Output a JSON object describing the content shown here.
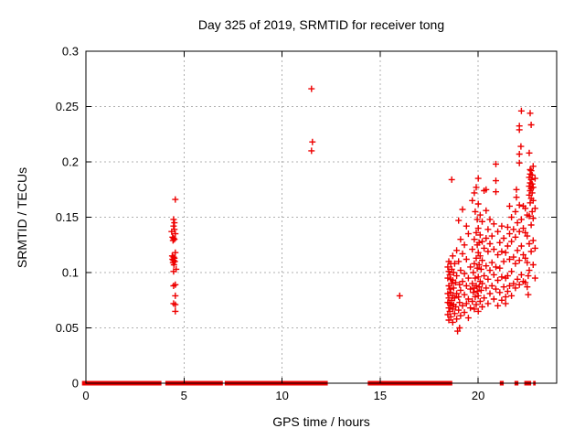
{
  "title": "Day 325 of 2019, SRMTID for receiver tong",
  "chart_data": {
    "type": "scatter",
    "title": "Day 325 of 2019, SRMTID for receiver tong",
    "xlabel": "GPS time / hours",
    "ylabel": "SRMTID / TECUs",
    "xlim": [
      0,
      24
    ],
    "ylim": [
      0,
      0.3
    ],
    "grid": true,
    "legend": "none",
    "marker": "plus",
    "marker_color": "#ee0000",
    "grid_color": "#b0b0b0",
    "axis_color": "#000000",
    "x_ticks": [
      {
        "v": 0,
        "label": "0"
      },
      {
        "v": 5,
        "label": "5"
      },
      {
        "v": 10,
        "label": "10"
      },
      {
        "v": 15,
        "label": "15"
      },
      {
        "v": 20,
        "label": "20"
      }
    ],
    "y_ticks": [
      {
        "v": 0,
        "label": "0"
      },
      {
        "v": 0.05,
        "label": "0.05"
      },
      {
        "v": 0.1,
        "label": "0.1"
      },
      {
        "v": 0.15,
        "label": "0.15"
      },
      {
        "v": 0.2,
        "label": "0.2"
      },
      {
        "v": 0.25,
        "label": "0.25"
      },
      {
        "v": 0.3,
        "label": "0.3"
      }
    ],
    "zero_band_segments": [
      [
        -0.2,
        3.85
      ],
      [
        4.05,
        6.98
      ],
      [
        7.08,
        12.33
      ],
      [
        14.37,
        18.68
      ],
      [
        21.1,
        21.3
      ],
      [
        21.85,
        22.05
      ],
      [
        22.35,
        22.7
      ],
      [
        22.8,
        22.93
      ]
    ],
    "points": [
      [
        4.56,
        0.166
      ],
      [
        4.47,
        0.148
      ],
      [
        4.51,
        0.145
      ],
      [
        4.47,
        0.142
      ],
      [
        4.51,
        0.139
      ],
      [
        4.37,
        0.137
      ],
      [
        4.56,
        0.135
      ],
      [
        4.42,
        0.132
      ],
      [
        4.47,
        0.131
      ],
      [
        4.51,
        0.13
      ],
      [
        4.44,
        0.129
      ],
      [
        4.56,
        0.118
      ],
      [
        4.4,
        0.115
      ],
      [
        4.47,
        0.114
      ],
      [
        4.51,
        0.113
      ],
      [
        4.42,
        0.112
      ],
      [
        4.47,
        0.111
      ],
      [
        4.53,
        0.11
      ],
      [
        4.44,
        0.109
      ],
      [
        4.49,
        0.107
      ],
      [
        4.6,
        0.103
      ],
      [
        4.47,
        0.101
      ],
      [
        4.56,
        0.089
      ],
      [
        4.47,
        0.088
      ],
      [
        4.56,
        0.079
      ],
      [
        4.47,
        0.072
      ],
      [
        4.56,
        0.071
      ],
      [
        4.56,
        0.065
      ],
      [
        11.5,
        0.266
      ],
      [
        11.55,
        0.218
      ],
      [
        11.5,
        0.21
      ],
      [
        16.0,
        0.079
      ],
      [
        18.45,
        0.062
      ],
      [
        18.45,
        0.073
      ],
      [
        18.45,
        0.081
      ],
      [
        18.45,
        0.095
      ],
      [
        18.45,
        0.105
      ],
      [
        18.5,
        0.057
      ],
      [
        18.5,
        0.068
      ],
      [
        18.5,
        0.077
      ],
      [
        18.5,
        0.088
      ],
      [
        18.5,
        0.101
      ],
      [
        18.5,
        0.11
      ],
      [
        18.55,
        0.065
      ],
      [
        18.55,
        0.072
      ],
      [
        18.55,
        0.085
      ],
      [
        18.55,
        0.098
      ],
      [
        18.6,
        0.06
      ],
      [
        18.6,
        0.07
      ],
      [
        18.6,
        0.082
      ],
      [
        18.6,
        0.094
      ],
      [
        18.6,
        0.108
      ],
      [
        18.65,
        0.075
      ],
      [
        18.65,
        0.09
      ],
      [
        18.65,
        0.103
      ],
      [
        18.65,
        0.184
      ],
      [
        18.7,
        0.055
      ],
      [
        18.7,
        0.067
      ],
      [
        18.7,
        0.079
      ],
      [
        18.7,
        0.093
      ],
      [
        18.7,
        0.115
      ],
      [
        18.75,
        0.071
      ],
      [
        18.75,
        0.086
      ],
      [
        18.75,
        0.1
      ],
      [
        18.8,
        0.063
      ],
      [
        18.8,
        0.077
      ],
      [
        18.8,
        0.108
      ],
      [
        18.85,
        0.069
      ],
      [
        18.85,
        0.091
      ],
      [
        18.9,
        0.058
      ],
      [
        18.9,
        0.081
      ],
      [
        18.9,
        0.097
      ],
      [
        18.9,
        0.12
      ],
      [
        18.95,
        0.047
      ],
      [
        19.05,
        0.05
      ],
      [
        19.0,
        0.066
      ],
      [
        19.0,
        0.078
      ],
      [
        19.0,
        0.11
      ],
      [
        19.0,
        0.147
      ],
      [
        19.05,
        0.073
      ],
      [
        19.05,
        0.089
      ],
      [
        19.1,
        0.061
      ],
      [
        19.1,
        0.084
      ],
      [
        19.1,
        0.102
      ],
      [
        19.1,
        0.13
      ],
      [
        19.2,
        0.07
      ],
      [
        19.2,
        0.092
      ],
      [
        19.2,
        0.117
      ],
      [
        19.2,
        0.157
      ],
      [
        19.3,
        0.064
      ],
      [
        19.3,
        0.08
      ],
      [
        19.3,
        0.099
      ],
      [
        19.3,
        0.125
      ],
      [
        19.4,
        0.072
      ],
      [
        19.4,
        0.088
      ],
      [
        19.4,
        0.112
      ],
      [
        19.4,
        0.142
      ],
      [
        19.5,
        0.059
      ],
      [
        19.5,
        0.076
      ],
      [
        19.5,
        0.095
      ],
      [
        19.5,
        0.135
      ],
      [
        19.6,
        0.068
      ],
      [
        19.6,
        0.085
      ],
      [
        19.6,
        0.105
      ],
      [
        19.7,
        0.074
      ],
      [
        19.7,
        0.09
      ],
      [
        19.7,
        0.121
      ],
      [
        19.7,
        0.165
      ],
      [
        19.75,
        0.082
      ],
      [
        19.75,
        0.1
      ],
      [
        19.8,
        0.067
      ],
      [
        19.8,
        0.086
      ],
      [
        19.8,
        0.108
      ],
      [
        19.8,
        0.13
      ],
      [
        19.8,
        0.172
      ],
      [
        19.85,
        0.078
      ],
      [
        19.85,
        0.095
      ],
      [
        19.85,
        0.155
      ],
      [
        19.9,
        0.071
      ],
      [
        19.9,
        0.088
      ],
      [
        19.9,
        0.113
      ],
      [
        19.9,
        0.136
      ],
      [
        19.9,
        0.177
      ],
      [
        19.95,
        0.083
      ],
      [
        19.95,
        0.104
      ],
      [
        19.95,
        0.125
      ],
      [
        19.95,
        0.148
      ],
      [
        20.0,
        0.065
      ],
      [
        20.0,
        0.079
      ],
      [
        20.0,
        0.096
      ],
      [
        20.0,
        0.118
      ],
      [
        20.0,
        0.14
      ],
      [
        20.0,
        0.162
      ],
      [
        20.0,
        0.185
      ],
      [
        20.05,
        0.087
      ],
      [
        20.05,
        0.107
      ],
      [
        20.05,
        0.127
      ],
      [
        20.1,
        0.074
      ],
      [
        20.1,
        0.092
      ],
      [
        20.1,
        0.115
      ],
      [
        20.1,
        0.134
      ],
      [
        20.1,
        0.152
      ],
      [
        20.15,
        0.084
      ],
      [
        20.15,
        0.103
      ],
      [
        20.2,
        0.069
      ],
      [
        20.2,
        0.09
      ],
      [
        20.2,
        0.111
      ],
      [
        20.2,
        0.128
      ],
      [
        20.2,
        0.146
      ],
      [
        20.3,
        0.077
      ],
      [
        20.3,
        0.097
      ],
      [
        20.3,
        0.122
      ],
      [
        20.3,
        0.174
      ],
      [
        20.4,
        0.086
      ],
      [
        20.4,
        0.106
      ],
      [
        20.4,
        0.131
      ],
      [
        20.4,
        0.156
      ],
      [
        20.4,
        0.175
      ],
      [
        20.5,
        0.072
      ],
      [
        20.5,
        0.094
      ],
      [
        20.5,
        0.119
      ],
      [
        20.5,
        0.139
      ],
      [
        20.6,
        0.081
      ],
      [
        20.6,
        0.102
      ],
      [
        20.6,
        0.126
      ],
      [
        20.6,
        0.148
      ],
      [
        20.7,
        0.088
      ],
      [
        20.7,
        0.109
      ],
      [
        20.7,
        0.133
      ],
      [
        20.8,
        0.076
      ],
      [
        20.8,
        0.098
      ],
      [
        20.8,
        0.121
      ],
      [
        20.8,
        0.144
      ],
      [
        20.9,
        0.085
      ],
      [
        20.9,
        0.105
      ],
      [
        20.9,
        0.173
      ],
      [
        20.9,
        0.183
      ],
      [
        20.9,
        0.198
      ],
      [
        21.0,
        0.07
      ],
      [
        21.0,
        0.093
      ],
      [
        21.0,
        0.116
      ],
      [
        21.0,
        0.137
      ],
      [
        21.1,
        0.082
      ],
      [
        21.1,
        0.104
      ],
      [
        21.1,
        0.127
      ],
      [
        21.2,
        0.075
      ],
      [
        21.2,
        0.096
      ],
      [
        21.2,
        0.119
      ],
      [
        21.2,
        0.142
      ],
      [
        21.3,
        0.087
      ],
      [
        21.3,
        0.11
      ],
      [
        21.3,
        0.131
      ],
      [
        21.4,
        0.072
      ],
      [
        21.4,
        0.078
      ],
      [
        21.4,
        0.095
      ],
      [
        21.4,
        0.118
      ],
      [
        21.5,
        0.083
      ],
      [
        21.5,
        0.097
      ],
      [
        21.5,
        0.124
      ],
      [
        21.5,
        0.141
      ],
      [
        21.6,
        0.088
      ],
      [
        21.6,
        0.112
      ],
      [
        21.6,
        0.135
      ],
      [
        21.6,
        0.16
      ],
      [
        21.7,
        0.079
      ],
      [
        21.7,
        0.101
      ],
      [
        21.7,
        0.128
      ],
      [
        21.7,
        0.15
      ],
      [
        21.8,
        0.09
      ],
      [
        21.8,
        0.114
      ],
      [
        21.8,
        0.139
      ],
      [
        21.9,
        0.086
      ],
      [
        21.9,
        0.108
      ],
      [
        21.9,
        0.132
      ],
      [
        21.9,
        0.155
      ],
      [
        21.95,
        0.168
      ],
      [
        21.95,
        0.175
      ],
      [
        22.0,
        0.094
      ],
      [
        22.0,
        0.12
      ],
      [
        22.0,
        0.145
      ],
      [
        22.1,
        0.207
      ],
      [
        22.1,
        0.229
      ],
      [
        22.1,
        0.2325
      ],
      [
        22.1,
        0.089
      ],
      [
        22.1,
        0.111
      ],
      [
        22.1,
        0.137
      ],
      [
        22.1,
        0.161
      ],
      [
        22.1,
        0.199
      ],
      [
        22.18,
        0.214
      ],
      [
        22.2,
        0.098
      ],
      [
        22.2,
        0.124
      ],
      [
        22.2,
        0.148
      ],
      [
        22.2,
        0.246
      ],
      [
        22.3,
        0.092
      ],
      [
        22.3,
        0.116
      ],
      [
        22.3,
        0.14
      ],
      [
        22.3,
        0.16
      ],
      [
        22.4,
        0.091
      ],
      [
        22.4,
        0.113
      ],
      [
        22.4,
        0.136
      ],
      [
        22.4,
        0.158
      ],
      [
        22.5,
        0.087
      ],
      [
        22.5,
        0.109
      ],
      [
        22.5,
        0.133
      ],
      [
        22.5,
        0.152
      ],
      [
        22.55,
        0.08
      ],
      [
        22.55,
        0.097
      ],
      [
        22.6,
        0.102
      ],
      [
        22.6,
        0.126
      ],
      [
        22.6,
        0.151
      ],
      [
        22.6,
        0.17
      ],
      [
        22.6,
        0.178
      ],
      [
        22.6,
        0.186
      ],
      [
        22.6,
        0.208
      ],
      [
        22.65,
        0.163
      ],
      [
        22.65,
        0.174
      ],
      [
        22.65,
        0.181
      ],
      [
        22.65,
        0.189
      ],
      [
        22.65,
        0.193
      ],
      [
        22.65,
        0.244
      ],
      [
        22.7,
        0.119
      ],
      [
        22.7,
        0.143
      ],
      [
        22.7,
        0.167
      ],
      [
        22.7,
        0.176
      ],
      [
        22.7,
        0.184
      ],
      [
        22.7,
        0.192
      ],
      [
        22.7,
        0.2335
      ],
      [
        22.75,
        0.155
      ],
      [
        22.75,
        0.172
      ],
      [
        22.75,
        0.18
      ],
      [
        22.75,
        0.188
      ],
      [
        22.8,
        0.107
      ],
      [
        22.8,
        0.129
      ],
      [
        22.8,
        0.149
      ],
      [
        22.8,
        0.165
      ],
      [
        22.8,
        0.177
      ],
      [
        22.8,
        0.196
      ],
      [
        22.9,
        0.095
      ],
      [
        22.9,
        0.122
      ],
      [
        22.9,
        0.158
      ],
      [
        22.9,
        0.185
      ]
    ]
  }
}
